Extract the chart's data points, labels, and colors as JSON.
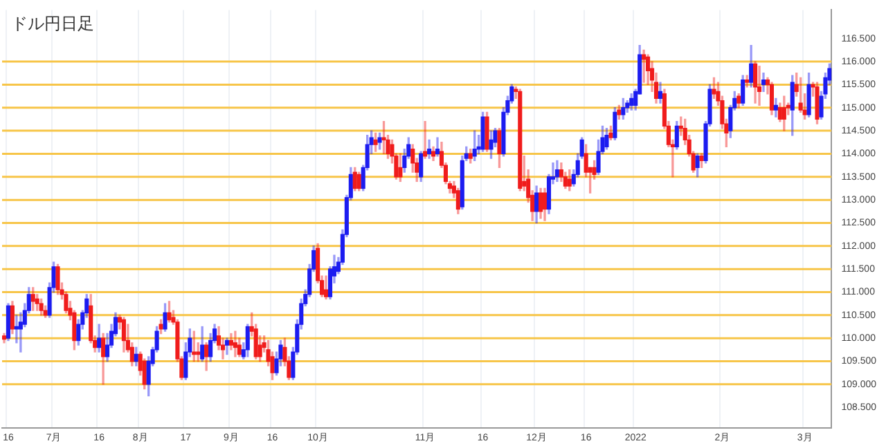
{
  "chart_data": {
    "type": "candlestick",
    "title": "ドル円日足",
    "categories": [
      null,
      "16",
      null,
      null,
      null,
      null,
      null,
      null,
      null,
      null,
      null,
      null,
      "7月",
      null,
      null,
      null,
      null,
      null,
      null,
      null,
      null,
      null,
      null,
      "16",
      null,
      null,
      null,
      null,
      null,
      null,
      null,
      null,
      null,
      "8月",
      null,
      null,
      null,
      null,
      null,
      null,
      null,
      null,
      null,
      null,
      "17",
      null,
      null,
      null,
      null,
      null,
      null,
      null,
      null,
      null,
      null,
      "9月",
      null,
      null,
      null,
      null,
      null,
      null,
      null,
      null,
      null,
      "16",
      null,
      null,
      null,
      null,
      null,
      null,
      null,
      null,
      null,
      null,
      "10月",
      null,
      null,
      null,
      null,
      null,
      null,
      null,
      null,
      null,
      null,
      null,
      null,
      null,
      null,
      null,
      null,
      null,
      null,
      null,
      null,
      null,
      null,
      null,
      null,
      null,
      "11月",
      null,
      null,
      null,
      null,
      null,
      null,
      null,
      null,
      null,
      null,
      null,
      null,
      null,
      "16",
      null,
      null,
      null,
      null,
      null,
      null,
      null,
      null,
      null,
      null,
      null,
      null,
      "12月",
      null,
      null,
      null,
      null,
      null,
      null,
      null,
      null,
      null,
      null,
      null,
      "16",
      null,
      null,
      null,
      null,
      null,
      null,
      null,
      null,
      null,
      null,
      null,
      "2022",
      null,
      null,
      null,
      null,
      null,
      null,
      null,
      null,
      null,
      null,
      null,
      null,
      null,
      null,
      null,
      null,
      null,
      null,
      null,
      null,
      "2月",
      null,
      null,
      null,
      null,
      null,
      null,
      null,
      null,
      null,
      null,
      null,
      null,
      null,
      null,
      null,
      null,
      null,
      null,
      null,
      "3月",
      null,
      null,
      null,
      null,
      null,
      null
    ],
    "ohlc": [
      [
        110.05,
        110.1,
        109.9,
        109.98
      ],
      [
        110.0,
        110.75,
        109.95,
        110.7
      ],
      [
        110.7,
        110.8,
        110.1,
        110.2
      ],
      [
        110.2,
        110.5,
        109.9,
        110.25
      ],
      [
        110.2,
        110.55,
        109.7,
        110.35
      ],
      [
        110.3,
        110.75,
        110.25,
        110.6
      ],
      [
        110.6,
        111.1,
        110.55,
        110.95
      ],
      [
        110.95,
        111.1,
        110.6,
        110.8
      ],
      [
        110.85,
        110.95,
        110.6,
        110.75
      ],
      [
        110.75,
        110.85,
        110.5,
        110.6
      ],
      [
        110.6,
        110.7,
        110.45,
        110.5
      ],
      [
        110.5,
        111.2,
        110.45,
        111.1
      ],
      [
        111.1,
        111.65,
        111.0,
        111.55
      ],
      [
        111.55,
        111.6,
        110.95,
        111.05
      ],
      [
        111.05,
        111.2,
        110.85,
        110.95
      ],
      [
        110.95,
        111.0,
        110.55,
        110.6
      ],
      [
        110.65,
        110.8,
        110.4,
        110.5
      ],
      [
        110.55,
        110.6,
        109.75,
        109.95
      ],
      [
        109.95,
        110.4,
        109.85,
        110.3
      ],
      [
        110.3,
        110.6,
        110.2,
        110.55
      ],
      [
        110.55,
        110.95,
        110.45,
        110.85
      ],
      [
        110.7,
        110.95,
        109.9,
        109.95
      ],
      [
        109.95,
        110.05,
        109.7,
        109.8
      ],
      [
        109.8,
        110.3,
        109.7,
        110.0
      ],
      [
        110.0,
        110.1,
        109.0,
        109.6
      ],
      [
        109.6,
        110.1,
        109.5,
        109.85
      ],
      [
        109.85,
        110.3,
        109.8,
        110.15
      ],
      [
        110.1,
        110.55,
        110.05,
        110.45
      ],
      [
        110.45,
        110.5,
        110.2,
        110.35
      ],
      [
        110.4,
        110.45,
        109.7,
        109.95
      ],
      [
        109.95,
        110.3,
        109.7,
        109.75
      ],
      [
        109.8,
        109.9,
        109.4,
        109.5
      ],
      [
        109.5,
        109.8,
        109.4,
        109.65
      ],
      [
        109.65,
        109.7,
        109.2,
        109.3
      ],
      [
        109.5,
        109.55,
        108.9,
        109.0
      ],
      [
        109.0,
        109.6,
        108.75,
        109.5
      ],
      [
        109.45,
        109.8,
        109.4,
        109.75
      ],
      [
        109.75,
        110.25,
        109.7,
        110.15
      ],
      [
        110.3,
        110.4,
        110.1,
        110.2
      ],
      [
        110.2,
        110.75,
        110.15,
        110.55
      ],
      [
        110.55,
        110.8,
        110.35,
        110.4
      ],
      [
        110.45,
        110.6,
        110.3,
        110.35
      ],
      [
        110.35,
        110.4,
        109.5,
        109.55
      ],
      [
        109.55,
        109.6,
        109.1,
        109.15
      ],
      [
        109.15,
        109.9,
        109.1,
        109.7
      ],
      [
        109.7,
        110.2,
        109.6,
        110.0
      ],
      [
        109.7,
        110.15,
        109.5,
        109.65
      ],
      [
        109.7,
        109.9,
        109.5,
        109.65
      ],
      [
        109.55,
        110.25,
        109.5,
        109.85
      ],
      [
        109.85,
        109.9,
        109.3,
        109.6
      ],
      [
        109.6,
        110.1,
        109.5,
        109.95
      ],
      [
        109.95,
        110.3,
        109.9,
        110.2
      ],
      [
        110.05,
        110.25,
        109.75,
        109.85
      ],
      [
        109.85,
        110.0,
        109.55,
        109.75
      ],
      [
        109.85,
        110.0,
        109.65,
        109.95
      ],
      [
        109.95,
        110.1,
        109.75,
        109.85
      ],
      [
        109.9,
        110.15,
        109.6,
        109.8
      ],
      [
        109.85,
        110.0,
        109.6,
        109.65
      ],
      [
        109.6,
        109.9,
        109.55,
        109.75
      ],
      [
        109.75,
        110.3,
        109.6,
        110.25
      ],
      [
        110.25,
        110.55,
        110.05,
        110.15
      ],
      [
        110.2,
        110.3,
        109.55,
        109.6
      ],
      [
        109.85,
        110.05,
        109.5,
        109.6
      ],
      [
        109.9,
        110.05,
        109.7,
        109.8
      ],
      [
        109.75,
        109.95,
        109.4,
        109.5
      ],
      [
        109.6,
        109.7,
        109.1,
        109.25
      ],
      [
        109.25,
        109.7,
        109.2,
        109.55
      ],
      [
        109.55,
        109.95,
        109.4,
        109.85
      ],
      [
        109.8,
        110.0,
        109.4,
        109.5
      ],
      [
        109.5,
        109.6,
        109.1,
        109.15
      ],
      [
        109.15,
        109.8,
        109.1,
        109.7
      ],
      [
        109.7,
        110.4,
        109.65,
        110.3
      ],
      [
        110.3,
        110.85,
        110.2,
        110.75
      ],
      [
        110.75,
        111.05,
        110.7,
        110.95
      ],
      [
        110.95,
        111.6,
        110.9,
        111.5
      ],
      [
        111.5,
        112.0,
        111.45,
        111.9
      ],
      [
        111.95,
        112.05,
        111.2,
        111.25
      ],
      [
        111.25,
        111.35,
        110.9,
        110.95
      ],
      [
        111.05,
        111.35,
        110.85,
        110.9
      ],
      [
        110.9,
        111.55,
        110.85,
        111.5
      ],
      [
        111.35,
        111.8,
        111.2,
        111.55
      ],
      [
        111.45,
        111.75,
        111.4,
        111.65
      ],
      [
        111.65,
        112.35,
        111.6,
        112.25
      ],
      [
        112.25,
        113.1,
        112.2,
        113.05
      ],
      [
        113.05,
        113.7,
        113.0,
        113.55
      ],
      [
        113.6,
        113.7,
        113.2,
        113.25
      ],
      [
        113.55,
        113.6,
        113.2,
        113.25
      ],
      [
        113.25,
        113.75,
        113.2,
        113.7
      ],
      [
        113.7,
        114.4,
        113.65,
        114.2
      ],
      [
        114.2,
        114.5,
        114.0,
        114.35
      ],
      [
        114.3,
        114.45,
        114.05,
        114.2
      ],
      [
        114.25,
        114.45,
        114.1,
        114.35
      ],
      [
        114.35,
        114.7,
        114.0,
        114.3
      ],
      [
        114.3,
        114.4,
        113.9,
        114.0
      ],
      [
        114.2,
        114.3,
        113.8,
        113.95
      ],
      [
        113.95,
        114.0,
        113.45,
        113.5
      ],
      [
        113.7,
        114.0,
        113.4,
        113.5
      ],
      [
        113.7,
        114.1,
        113.6,
        113.95
      ],
      [
        113.95,
        114.35,
        113.9,
        114.2
      ],
      [
        114.1,
        114.2,
        113.6,
        113.8
      ],
      [
        113.8,
        113.9,
        113.4,
        113.6
      ],
      [
        113.5,
        114.05,
        113.4,
        114.0
      ],
      [
        114.05,
        114.7,
        113.9,
        113.95
      ],
      [
        114.0,
        114.3,
        113.9,
        114.1
      ],
      [
        114.05,
        114.15,
        113.85,
        113.95
      ],
      [
        114.0,
        114.35,
        113.95,
        114.1
      ],
      [
        114.05,
        114.25,
        113.7,
        113.75
      ],
      [
        113.75,
        113.8,
        113.35,
        113.4
      ],
      [
        113.35,
        113.4,
        113.15,
        113.25
      ],
      [
        113.3,
        113.4,
        113.05,
        113.15
      ],
      [
        113.2,
        113.25,
        112.7,
        112.8
      ],
      [
        112.85,
        113.95,
        112.8,
        113.85
      ],
      [
        113.9,
        114.15,
        113.85,
        114.0
      ],
      [
        114.0,
        114.1,
        113.8,
        113.9
      ],
      [
        113.95,
        114.5,
        113.85,
        114.1
      ],
      [
        114.1,
        114.4,
        114.0,
        114.15
      ],
      [
        114.1,
        114.9,
        114.05,
        114.8
      ],
      [
        114.8,
        114.9,
        114.05,
        114.1
      ],
      [
        114.1,
        114.5,
        113.9,
        114.3
      ],
      [
        114.25,
        114.55,
        114.15,
        114.5
      ],
      [
        114.5,
        114.55,
        113.7,
        114.0
      ],
      [
        114.0,
        115.0,
        113.95,
        114.9
      ],
      [
        114.9,
        115.25,
        114.85,
        115.15
      ],
      [
        115.15,
        115.5,
        115.1,
        115.45
      ],
      [
        115.4,
        115.45,
        115.2,
        115.35
      ],
      [
        115.35,
        115.4,
        113.2,
        113.25
      ],
      [
        113.4,
        113.95,
        113.2,
        113.3
      ],
      [
        113.45,
        113.65,
        112.95,
        113.05
      ],
      [
        113.1,
        113.2,
        112.55,
        112.75
      ],
      [
        112.75,
        113.3,
        112.5,
        113.15
      ],
      [
        113.15,
        113.25,
        112.6,
        112.75
      ],
      [
        113.15,
        113.25,
        112.55,
        112.8
      ],
      [
        112.8,
        113.55,
        112.7,
        113.5
      ],
      [
        113.45,
        113.8,
        113.35,
        113.5
      ],
      [
        113.5,
        113.85,
        113.4,
        113.65
      ],
      [
        113.65,
        113.8,
        113.4,
        113.5
      ],
      [
        113.5,
        113.6,
        113.25,
        113.3
      ],
      [
        113.45,
        113.65,
        113.2,
        113.3
      ],
      [
        113.35,
        113.65,
        113.3,
        113.55
      ],
      [
        113.55,
        114.0,
        113.5,
        113.85
      ],
      [
        113.95,
        114.35,
        113.9,
        114.3
      ],
      [
        114.0,
        114.2,
        113.5,
        113.6
      ],
      [
        113.7,
        113.7,
        113.15,
        113.6
      ],
      [
        113.7,
        113.85,
        113.45,
        113.55
      ],
      [
        113.6,
        114.3,
        113.55,
        114.05
      ],
      [
        114.05,
        114.6,
        114.0,
        114.35
      ],
      [
        114.15,
        114.55,
        114.1,
        114.4
      ],
      [
        114.45,
        114.6,
        114.3,
        114.35
      ],
      [
        114.35,
        115.0,
        114.3,
        114.9
      ],
      [
        114.95,
        115.05,
        114.75,
        114.85
      ],
      [
        114.85,
        115.2,
        114.75,
        115.0
      ],
      [
        115.0,
        115.15,
        114.9,
        115.1
      ],
      [
        115.05,
        115.3,
        114.95,
        115.2
      ],
      [
        115.05,
        115.4,
        114.95,
        115.35
      ],
      [
        115.3,
        116.35,
        115.3,
        116.15
      ],
      [
        116.15,
        116.25,
        115.55,
        116.05
      ],
      [
        116.1,
        116.15,
        115.5,
        115.8
      ],
      [
        115.85,
        116.0,
        115.35,
        115.6
      ],
      [
        115.55,
        115.75,
        115.1,
        115.2
      ],
      [
        115.2,
        115.55,
        115.1,
        115.35
      ],
      [
        115.3,
        115.4,
        114.55,
        114.6
      ],
      [
        114.6,
        114.7,
        114.15,
        114.2
      ],
      [
        114.2,
        114.3,
        113.5,
        114.15
      ],
      [
        114.15,
        114.7,
        114.1,
        114.6
      ],
      [
        114.6,
        114.8,
        114.4,
        114.55
      ],
      [
        114.55,
        114.75,
        114.2,
        114.3
      ],
      [
        114.3,
        114.4,
        113.95,
        114.0
      ],
      [
        114.0,
        114.05,
        113.6,
        113.65
      ],
      [
        113.7,
        114.0,
        113.5,
        113.95
      ],
      [
        113.95,
        114.0,
        113.7,
        113.85
      ],
      [
        113.85,
        114.7,
        113.8,
        114.65
      ],
      [
        114.65,
        115.5,
        114.6,
        115.4
      ],
      [
        115.4,
        115.65,
        115.2,
        115.3
      ],
      [
        115.35,
        115.55,
        115.05,
        115.15
      ],
      [
        115.15,
        115.25,
        114.55,
        114.65
      ],
      [
        114.65,
        114.75,
        114.15,
        114.45
      ],
      [
        114.5,
        115.05,
        114.35,
        115.0
      ],
      [
        115.0,
        115.35,
        114.95,
        115.2
      ],
      [
        115.25,
        115.3,
        115.0,
        115.1
      ],
      [
        115.1,
        115.7,
        115.05,
        115.6
      ],
      [
        115.6,
        115.7,
        115.45,
        115.55
      ],
      [
        115.55,
        116.35,
        115.45,
        115.95
      ],
      [
        115.95,
        116.0,
        115.1,
        115.45
      ],
      [
        115.45,
        115.9,
        115.05,
        115.35
      ],
      [
        115.5,
        115.75,
        115.35,
        115.6
      ],
      [
        115.6,
        115.65,
        115.3,
        115.5
      ],
      [
        115.5,
        115.55,
        114.85,
        114.95
      ],
      [
        114.95,
        115.2,
        114.8,
        115.05
      ],
      [
        115.0,
        115.1,
        114.7,
        114.75
      ],
      [
        115.0,
        115.25,
        114.5,
        114.75
      ],
      [
        115.05,
        115.1,
        114.85,
        115.0
      ],
      [
        114.95,
        115.7,
        114.4,
        115.55
      ],
      [
        115.5,
        115.75,
        115.25,
        115.35
      ],
      [
        115.1,
        115.65,
        114.9,
        114.95
      ],
      [
        114.95,
        115.3,
        114.75,
        114.85
      ],
      [
        114.85,
        115.75,
        114.8,
        115.5
      ],
      [
        115.5,
        115.55,
        115.25,
        115.45
      ],
      [
        115.45,
        115.55,
        114.65,
        114.75
      ],
      [
        114.8,
        115.35,
        114.75,
        115.25
      ],
      [
        115.3,
        115.75,
        115.2,
        115.65
      ],
      [
        115.6,
        115.95,
        115.5,
        115.85
      ]
    ],
    "colors": [
      "#f01c1c",
      "#1c1cf0",
      "#f01c1c",
      "#1c1cf0",
      "#1c1cf0",
      "#1c1cf0",
      "#1c1cf0",
      "#f01c1c",
      "#f01c1c",
      "#f01c1c",
      "#f01c1c",
      "#1c1cf0",
      "#1c1cf0",
      "#f01c1c",
      "#f01c1c",
      "#f01c1c",
      "#f01c1c",
      "#f01c1c",
      "#1c1cf0",
      "#1c1cf0",
      "#1c1cf0",
      "#f01c1c",
      "#f01c1c",
      "#1c1cf0",
      "#f01c1c",
      "#1c1cf0",
      "#1c1cf0",
      "#1c1cf0",
      "#f01c1c",
      "#f01c1c",
      "#f01c1c",
      "#f01c1c",
      "#1c1cf0",
      "#f01c1c",
      "#f01c1c",
      "#1c1cf0",
      "#1c1cf0",
      "#1c1cf0",
      "#f01c1c",
      "#1c1cf0",
      "#f01c1c",
      "#f01c1c",
      "#f01c1c",
      "#f01c1c",
      "#1c1cf0",
      "#1c1cf0",
      "#f01c1c",
      "#f01c1c",
      "#1c1cf0",
      "#f01c1c",
      "#1c1cf0",
      "#1c1cf0",
      "#f01c1c",
      "#f01c1c",
      "#1c1cf0",
      "#f01c1c",
      "#f01c1c",
      "#f01c1c",
      "#1c1cf0",
      "#1c1cf0",
      "#f01c1c",
      "#f01c1c",
      "#f01c1c",
      "#f01c1c",
      "#f01c1c",
      "#f01c1c",
      "#1c1cf0",
      "#1c1cf0",
      "#f01c1c",
      "#f01c1c",
      "#1c1cf0",
      "#1c1cf0",
      "#1c1cf0",
      "#1c1cf0",
      "#1c1cf0",
      "#1c1cf0",
      "#f01c1c",
      "#f01c1c",
      "#f01c1c",
      "#1c1cf0",
      "#1c1cf0",
      "#1c1cf0",
      "#1c1cf0",
      "#1c1cf0",
      "#1c1cf0",
      "#f01c1c",
      "#f01c1c",
      "#1c1cf0",
      "#1c1cf0",
      "#1c1cf0",
      "#f01c1c",
      "#1c1cf0",
      "#f01c1c",
      "#f01c1c",
      "#f01c1c",
      "#f01c1c",
      "#f01c1c",
      "#1c1cf0",
      "#1c1cf0",
      "#f01c1c",
      "#f01c1c",
      "#1c1cf0",
      "#f01c1c",
      "#1c1cf0",
      "#f01c1c",
      "#1c1cf0",
      "#f01c1c",
      "#f01c1c",
      "#f01c1c",
      "#f01c1c",
      "#f01c1c",
      "#1c1cf0",
      "#1c1cf0",
      "#f01c1c",
      "#1c1cf0",
      "#1c1cf0",
      "#1c1cf0",
      "#f01c1c",
      "#1c1cf0",
      "#1c1cf0",
      "#f01c1c",
      "#1c1cf0",
      "#1c1cf0",
      "#1c1cf0",
      "#f01c1c",
      "#f01c1c",
      "#f01c1c",
      "#f01c1c",
      "#f01c1c",
      "#1c1cf0",
      "#f01c1c",
      "#f01c1c",
      "#1c1cf0",
      "#1c1cf0",
      "#1c1cf0",
      "#f01c1c",
      "#f01c1c",
      "#f01c1c",
      "#1c1cf0",
      "#1c1cf0",
      "#1c1cf0",
      "#f01c1c",
      "#f01c1c",
      "#f01c1c",
      "#1c1cf0",
      "#1c1cf0",
      "#1c1cf0",
      "#f01c1c",
      "#1c1cf0",
      "#f01c1c",
      "#1c1cf0",
      "#1c1cf0",
      "#1c1cf0",
      "#1c1cf0",
      "#1c1cf0",
      "#f01c1c",
      "#f01c1c",
      "#f01c1c",
      "#f01c1c",
      "#1c1cf0",
      "#f01c1c",
      "#f01c1c",
      "#f01c1c",
      "#1c1cf0",
      "#f01c1c",
      "#f01c1c",
      "#f01c1c",
      "#f01c1c",
      "#1c1cf0",
      "#f01c1c",
      "#1c1cf0",
      "#1c1cf0",
      "#f01c1c",
      "#f01c1c",
      "#f01c1c",
      "#f01c1c",
      "#1c1cf0",
      "#1c1cf0",
      "#f01c1c",
      "#1c1cf0",
      "#f01c1c",
      "#1c1cf0",
      "#f01c1c",
      "#f01c1c",
      "#1c1cf0",
      "#f01c1c",
      "#f01c1c",
      "#1c1cf0",
      "#f01c1c",
      "#f01c1c",
      "#f01c1c",
      "#1c1cf0",
      "#f01c1c",
      "#f01c1c",
      "#f01c1c",
      "#1c1cf0",
      "#f01c1c",
      "#f01c1c",
      "#1c1cf0",
      "#1c1cf0",
      "#1c1cf0"
    ],
    "ylim": [
      108.05,
      117.12
    ],
    "yticks": [
      {
        "value": 108.5,
        "label": "108.500"
      },
      {
        "value": 109,
        "label": "109.000"
      },
      {
        "value": 109.5,
        "label": "109.500"
      },
      {
        "value": 110,
        "label": "110.000"
      },
      {
        "value": 110.5,
        "label": "110.500"
      },
      {
        "value": 111,
        "label": "111.000"
      },
      {
        "value": 111.5,
        "label": "111.500"
      },
      {
        "value": 112,
        "label": "112.000"
      },
      {
        "value": 112.5,
        "label": "112.500"
      },
      {
        "value": 113,
        "label": "113.000"
      },
      {
        "value": 113.5,
        "label": "113.500"
      },
      {
        "value": 114,
        "label": "114.000"
      },
      {
        "value": 114.5,
        "label": "114.500"
      },
      {
        "value": 115,
        "label": "115.000"
      },
      {
        "value": 115.5,
        "label": "115.500"
      },
      {
        "value": 116,
        "label": "116.000"
      },
      {
        "value": 116.5,
        "label": "116.500"
      }
    ],
    "ref_lines": [
      {
        "axis": "y",
        "value": 109,
        "color": "#f7c548"
      },
      {
        "axis": "y",
        "value": 109.5,
        "color": "#f7c548"
      },
      {
        "axis": "y",
        "value": 110,
        "color": "#f7c548"
      },
      {
        "axis": "y",
        "value": 110.5,
        "color": "#f7c548"
      },
      {
        "axis": "y",
        "value": 111,
        "color": "#f7c548"
      },
      {
        "axis": "y",
        "value": 111.5,
        "color": "#f7c548"
      },
      {
        "axis": "y",
        "value": 112,
        "color": "#f7c548"
      },
      {
        "axis": "y",
        "value": 112.5,
        "color": "#f7c548"
      },
      {
        "axis": "y",
        "value": 113,
        "color": "#f7c548"
      },
      {
        "axis": "y",
        "value": 113.5,
        "color": "#f7c548"
      },
      {
        "axis": "y",
        "value": 114,
        "color": "#f7c548"
      },
      {
        "axis": "y",
        "value": 114.5,
        "color": "#f7c548"
      },
      {
        "axis": "y",
        "value": 115,
        "color": "#f7c548"
      },
      {
        "axis": "y",
        "value": 115.5,
        "color": "#f7c548"
      },
      {
        "axis": "y",
        "value": 116,
        "color": "#f7c548"
      }
    ],
    "grid": "x",
    "legend": false
  }
}
